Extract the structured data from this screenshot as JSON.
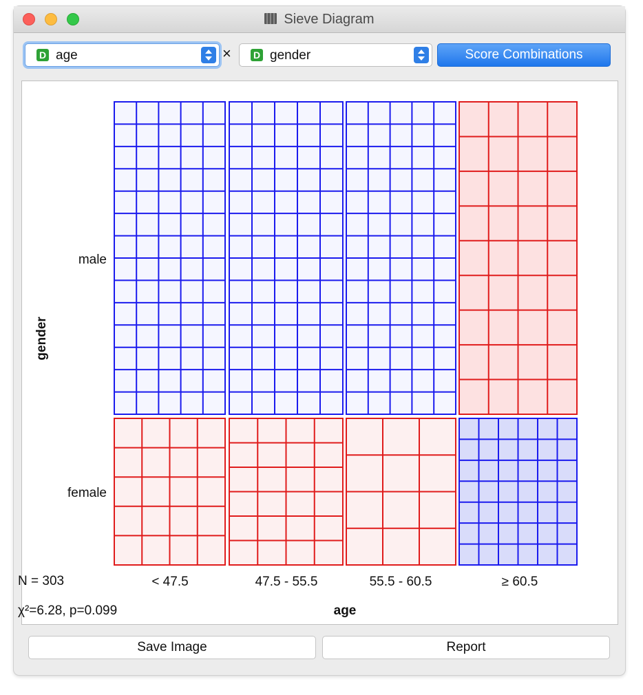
{
  "window": {
    "title": "Sieve Diagram",
    "icon": "sieve-widget-icon"
  },
  "controls": {
    "row_attr": {
      "badge": "D",
      "value": "age"
    },
    "times_symbol": "×",
    "col_attr": {
      "badge": "D",
      "value": "gender"
    },
    "score_button": "Score Combinations"
  },
  "footer": {
    "save_label": "Save Image",
    "report_label": "Report"
  },
  "chart_data": {
    "type": "sieve",
    "xlabel": "age",
    "ylabel": "gender",
    "x_categories": [
      "< 47.5",
      "47.5 - 55.5",
      "55.5 - 60.5",
      "≥ 60.5"
    ],
    "y_categories": [
      "male",
      "female"
    ],
    "stats": {
      "n_text": "N = 303",
      "chi_text": "χ²=6.28, p=0.099"
    },
    "colors": {
      "observed_higher_stroke": "#1a1aee",
      "observed_lower_stroke": "#e01b1b",
      "blue_fill_light": "#f5f6ff",
      "blue_fill_strong": "#d9dcfa",
      "red_fill_light": "#fdf0f0",
      "red_fill_strong": "#fde1e1"
    },
    "cells": [
      {
        "x": "< 47.5",
        "y": "male",
        "col": "blue",
        "fill": "blue_fill_light",
        "nx": 5,
        "ny": 14
      },
      {
        "x": "47.5 - 55.5",
        "y": "male",
        "col": "blue",
        "fill": "blue_fill_light",
        "nx": 5,
        "ny": 14
      },
      {
        "x": "55.5 - 60.5",
        "y": "male",
        "col": "blue",
        "fill": "blue_fill_light",
        "nx": 5,
        "ny": 14
      },
      {
        "x": "≥ 60.5",
        "y": "male",
        "col": "red",
        "fill": "red_fill_strong",
        "nx": 4,
        "ny": 9
      },
      {
        "x": "< 47.5",
        "y": "female",
        "col": "red",
        "fill": "red_fill_light",
        "nx": 4,
        "ny": 5
      },
      {
        "x": "47.5 - 55.5",
        "y": "female",
        "col": "red",
        "fill": "red_fill_light",
        "nx": 4,
        "ny": 6
      },
      {
        "x": "55.5 - 60.5",
        "y": "female",
        "col": "red",
        "fill": "red_fill_light",
        "nx": 3,
        "ny": 4
      },
      {
        "x": "≥ 60.5",
        "y": "female",
        "col": "blue",
        "fill": "blue_fill_strong",
        "nx": 6,
        "ny": 7
      }
    ]
  }
}
